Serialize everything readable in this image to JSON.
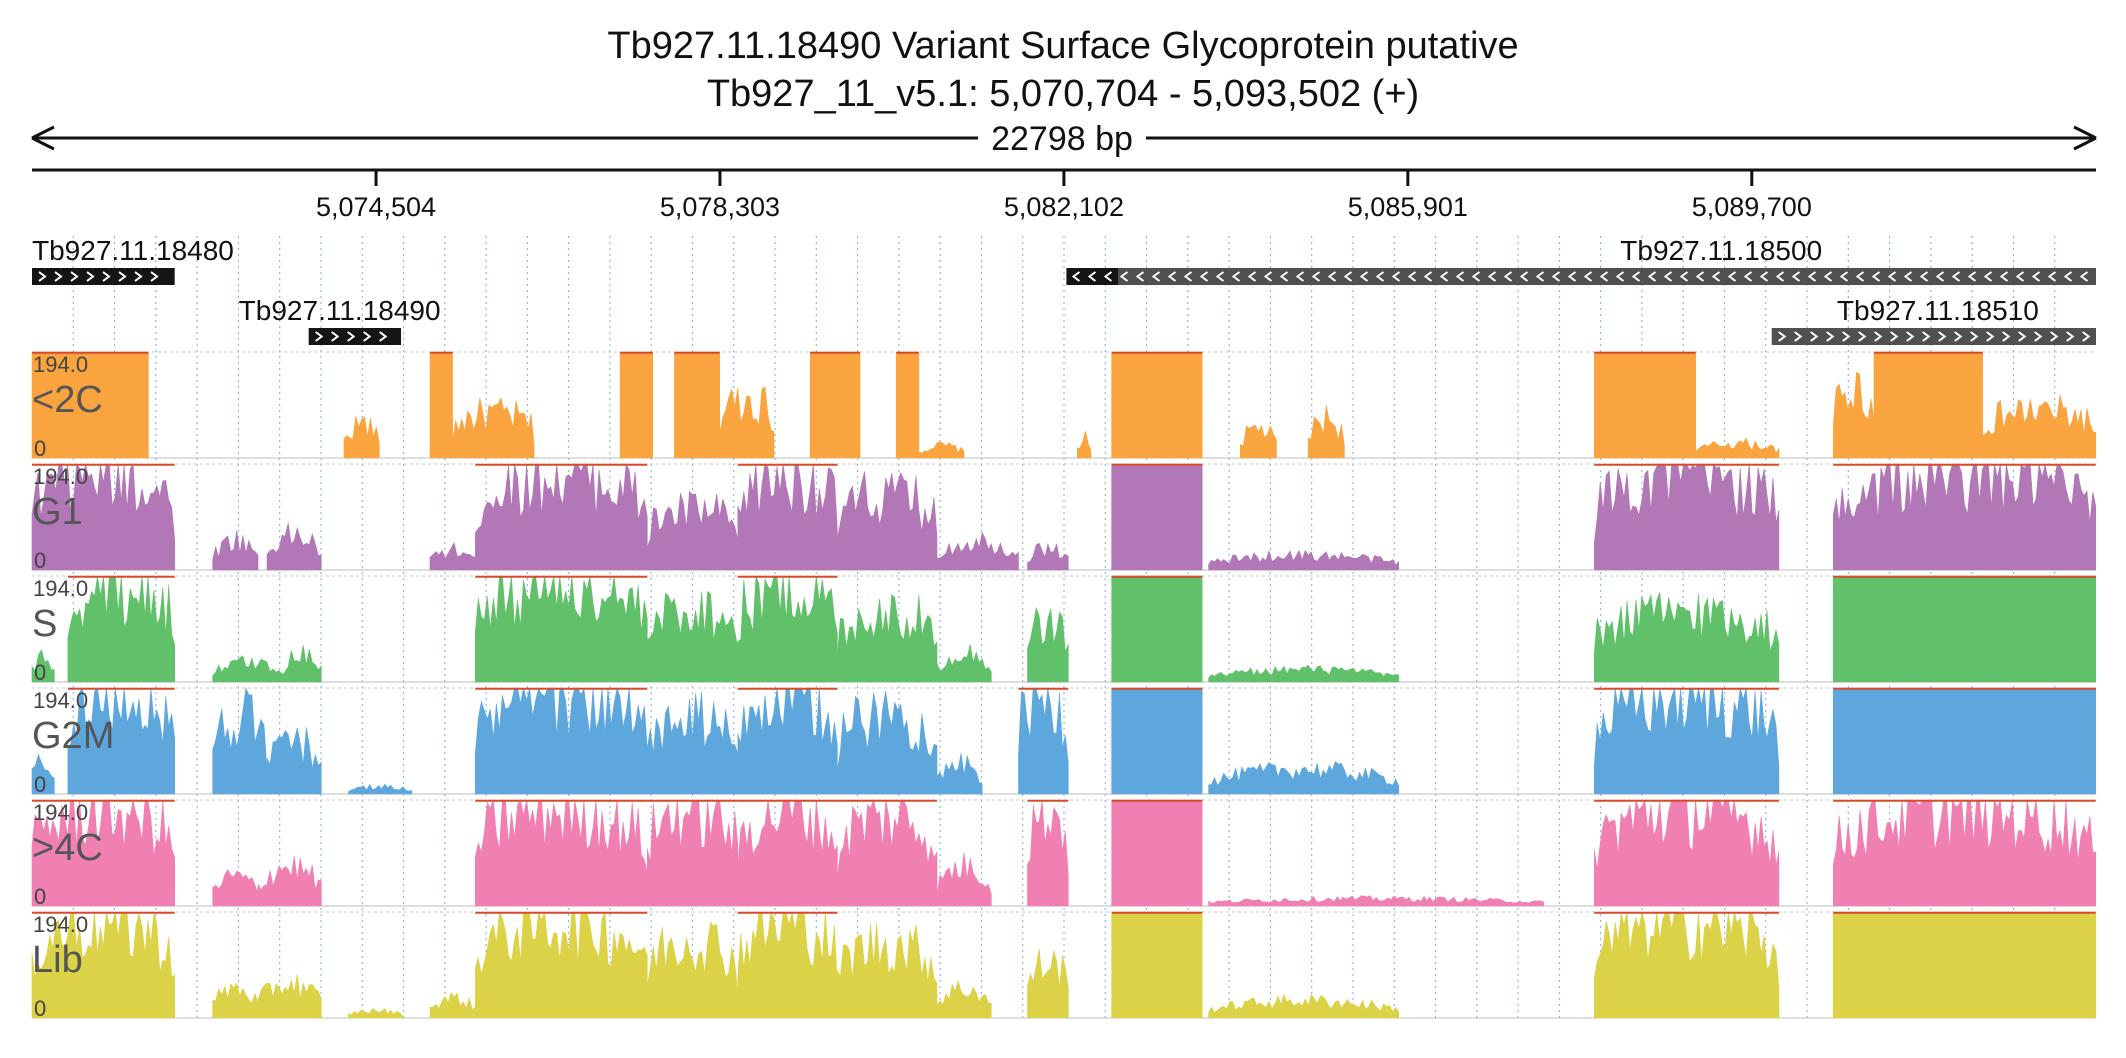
{
  "header": {
    "title": "Tb927.11.18490  Variant Surface Glycoprotein  putative",
    "subtitle": "Tb927_11_v5.1: 5,070,704 - 5,093,502 (+)",
    "span_label": "22798 bp"
  },
  "colors": {
    "<2C": "#f9a43e",
    "G1": "#b277b6",
    "S": "#61c06a",
    "G2M": "#5ea7dd",
    ">4C": "#f07fb2",
    "Lib": "#dcd247",
    "clip": "#d94a2a",
    "gene": "#151515",
    "gene_alt": "#505050"
  },
  "chart_data": {
    "type": "area",
    "title": "Tb927.11.18490  Variant Surface Glycoprotein  putative",
    "chromosome": "Tb927_11_v5.1",
    "region": {
      "start": 5070704,
      "end": 5093502,
      "strand": "+"
    },
    "x_ticks": [
      {
        "value": 5074504,
        "label": "5,074,504"
      },
      {
        "value": 5078303,
        "label": "5,078,303"
      },
      {
        "value": 5082102,
        "label": "5,082,102"
      },
      {
        "value": 5085901,
        "label": "5,085,901"
      },
      {
        "value": 5089700,
        "label": "5,089,700"
      }
    ],
    "genes": [
      {
        "id": "Tb927.11.18480",
        "start": 5070704,
        "end": 5072280,
        "strand": "+",
        "row": 0,
        "color": "gene"
      },
      {
        "id": "Tb927.11.18490",
        "start": 5073760,
        "end": 5074780,
        "strand": "+",
        "row": 1,
        "color": "gene"
      },
      {
        "id": "Tb927.11.18500",
        "start": 5082130,
        "end": 5093502,
        "strand": "-",
        "row": 0,
        "color": "gene_alt",
        "dark_end": 5082700
      },
      {
        "id": "Tb927.11.18510",
        "start": 5089920,
        "end": 5093502,
        "strand": "+",
        "row": 1,
        "color": "gene_alt"
      }
    ],
    "ylim": [
      0,
      194.0
    ],
    "y_top_label": "194.0",
    "y_bottom_label": "0",
    "series": [
      {
        "name": "<2C",
        "segments": [
          {
            "s": 5070704,
            "e": 5071990,
            "h": 194,
            "shape": "flat"
          },
          {
            "s": 5074150,
            "e": 5074540,
            "h": 70,
            "shape": "bump"
          },
          {
            "s": 5075100,
            "e": 5075350,
            "h": 194,
            "shape": "flat"
          },
          {
            "s": 5075350,
            "e": 5076250,
            "h": 90,
            "shape": "hump"
          },
          {
            "s": 5077200,
            "e": 5077560,
            "h": 194,
            "shape": "flat"
          },
          {
            "s": 5077800,
            "e": 5078300,
            "h": 194,
            "shape": "flat"
          },
          {
            "s": 5078300,
            "e": 5078900,
            "h": 120,
            "shape": "hump"
          },
          {
            "s": 5079300,
            "e": 5079850,
            "h": 194,
            "shape": "flat"
          },
          {
            "s": 5080250,
            "e": 5080500,
            "h": 194,
            "shape": "flat"
          },
          {
            "s": 5080500,
            "e": 5081000,
            "h": 25,
            "shape": "bump"
          },
          {
            "s": 5082250,
            "e": 5082400,
            "h": 40,
            "shape": "bump"
          },
          {
            "s": 5082630,
            "e": 5083630,
            "h": 194,
            "shape": "flat"
          },
          {
            "s": 5084050,
            "e": 5084450,
            "h": 60,
            "shape": "bump"
          },
          {
            "s": 5084800,
            "e": 5085200,
            "h": 80,
            "shape": "bump"
          },
          {
            "s": 5087960,
            "e": 5089080,
            "h": 194,
            "shape": "flat"
          },
          {
            "s": 5089080,
            "e": 5090000,
            "h": 30,
            "shape": "bump"
          },
          {
            "s": 5090600,
            "e": 5091050,
            "h": 140,
            "shape": "hump"
          },
          {
            "s": 5091050,
            "e": 5092250,
            "h": 194,
            "shape": "flat"
          },
          {
            "s": 5092250,
            "e": 5093500,
            "h": 95,
            "shape": "hump"
          }
        ]
      },
      {
        "name": "G1",
        "segments": [
          {
            "s": 5070704,
            "e": 5072280,
            "h": 194,
            "shape": "hump"
          },
          {
            "s": 5072700,
            "e": 5073200,
            "h": 60,
            "shape": "bump"
          },
          {
            "s": 5073300,
            "e": 5073900,
            "h": 70,
            "shape": "bump"
          },
          {
            "s": 5075100,
            "e": 5075600,
            "h": 40,
            "shape": "bump"
          },
          {
            "s": 5075600,
            "e": 5077500,
            "h": 194,
            "shape": "hump"
          },
          {
            "s": 5077500,
            "e": 5078500,
            "h": 120,
            "shape": "hump"
          },
          {
            "s": 5078500,
            "e": 5079600,
            "h": 194,
            "shape": "hump"
          },
          {
            "s": 5079600,
            "e": 5080700,
            "h": 150,
            "shape": "hump"
          },
          {
            "s": 5080700,
            "e": 5081600,
            "h": 60,
            "shape": "bump"
          },
          {
            "s": 5081700,
            "e": 5082150,
            "h": 45,
            "shape": "bump"
          },
          {
            "s": 5082630,
            "e": 5083630,
            "h": 194,
            "shape": "flat"
          },
          {
            "s": 5083700,
            "e": 5085800,
            "h": 30,
            "shape": "bump"
          },
          {
            "s": 5087960,
            "e": 5090000,
            "h": 194,
            "shape": "hump"
          },
          {
            "s": 5090600,
            "e": 5093500,
            "h": 194,
            "shape": "hump"
          }
        ]
      },
      {
        "name": "S",
        "segments": [
          {
            "s": 5070704,
            "e": 5070950,
            "h": 50,
            "shape": "bump"
          },
          {
            "s": 5071100,
            "e": 5072280,
            "h": 194,
            "shape": "hump"
          },
          {
            "s": 5072700,
            "e": 5073500,
            "h": 40,
            "shape": "bump"
          },
          {
            "s": 5073500,
            "e": 5073900,
            "h": 60,
            "shape": "bump"
          },
          {
            "s": 5075600,
            "e": 5077500,
            "h": 194,
            "shape": "hump"
          },
          {
            "s": 5077500,
            "e": 5078500,
            "h": 150,
            "shape": "hump"
          },
          {
            "s": 5078500,
            "e": 5079600,
            "h": 194,
            "shape": "hump"
          },
          {
            "s": 5079600,
            "e": 5080700,
            "h": 140,
            "shape": "hump"
          },
          {
            "s": 5080700,
            "e": 5081300,
            "h": 60,
            "shape": "bump"
          },
          {
            "s": 5081700,
            "e": 5082150,
            "h": 120,
            "shape": "hump"
          },
          {
            "s": 5082630,
            "e": 5083630,
            "h": 194,
            "shape": "flat"
          },
          {
            "s": 5083700,
            "e": 5085800,
            "h": 25,
            "shape": "bump"
          },
          {
            "s": 5087960,
            "e": 5090000,
            "h": 140,
            "shape": "hump"
          },
          {
            "s": 5090600,
            "e": 5093500,
            "h": 194,
            "shape": "flat"
          }
        ]
      },
      {
        "name": "G2M",
        "segments": [
          {
            "s": 5070704,
            "e": 5070950,
            "h": 80,
            "shape": "bump"
          },
          {
            "s": 5071100,
            "e": 5072280,
            "h": 194,
            "shape": "hump"
          },
          {
            "s": 5072700,
            "e": 5073300,
            "h": 160,
            "shape": "hump"
          },
          {
            "s": 5073300,
            "e": 5073900,
            "h": 110,
            "shape": "bump"
          },
          {
            "s": 5074200,
            "e": 5074900,
            "h": 15,
            "shape": "bump"
          },
          {
            "s": 5075600,
            "e": 5077500,
            "h": 194,
            "shape": "hump"
          },
          {
            "s": 5077500,
            "e": 5078500,
            "h": 150,
            "shape": "hump"
          },
          {
            "s": 5078500,
            "e": 5079600,
            "h": 194,
            "shape": "hump"
          },
          {
            "s": 5079600,
            "e": 5080700,
            "h": 160,
            "shape": "hump"
          },
          {
            "s": 5080700,
            "e": 5081200,
            "h": 60,
            "shape": "bump"
          },
          {
            "s": 5081600,
            "e": 5082150,
            "h": 194,
            "shape": "hump"
          },
          {
            "s": 5082630,
            "e": 5083630,
            "h": 194,
            "shape": "flat"
          },
          {
            "s": 5083700,
            "e": 5085800,
            "h": 50,
            "shape": "bump"
          },
          {
            "s": 5087960,
            "e": 5090000,
            "h": 194,
            "shape": "hump"
          },
          {
            "s": 5090600,
            "e": 5093500,
            "h": 194,
            "shape": "flat"
          }
        ]
      },
      {
        "name": ">4C",
        "segments": [
          {
            "s": 5070704,
            "e": 5072280,
            "h": 194,
            "shape": "hump"
          },
          {
            "s": 5072700,
            "e": 5073200,
            "h": 60,
            "shape": "bump"
          },
          {
            "s": 5073200,
            "e": 5073900,
            "h": 80,
            "shape": "bump"
          },
          {
            "s": 5075600,
            "e": 5077500,
            "h": 194,
            "shape": "hump"
          },
          {
            "s": 5077500,
            "e": 5078500,
            "h": 194,
            "shape": "hump"
          },
          {
            "s": 5078500,
            "e": 5079600,
            "h": 194,
            "shape": "hump"
          },
          {
            "s": 5079600,
            "e": 5080700,
            "h": 180,
            "shape": "hump"
          },
          {
            "s": 5080700,
            "e": 5081300,
            "h": 80,
            "shape": "bump"
          },
          {
            "s": 5081700,
            "e": 5082150,
            "h": 194,
            "shape": "hump"
          },
          {
            "s": 5082630,
            "e": 5083630,
            "h": 194,
            "shape": "flat"
          },
          {
            "s": 5083700,
            "e": 5087400,
            "h": 15,
            "shape": "bump"
          },
          {
            "s": 5087960,
            "e": 5090000,
            "h": 194,
            "shape": "hump"
          },
          {
            "s": 5090600,
            "e": 5093500,
            "h": 194,
            "shape": "hump"
          }
        ]
      },
      {
        "name": "Lib",
        "segments": [
          {
            "s": 5070704,
            "e": 5072280,
            "h": 194,
            "shape": "hump"
          },
          {
            "s": 5072700,
            "e": 5073200,
            "h": 60,
            "shape": "bump"
          },
          {
            "s": 5073200,
            "e": 5073900,
            "h": 70,
            "shape": "bump"
          },
          {
            "s": 5074200,
            "e": 5074800,
            "h": 15,
            "shape": "bump"
          },
          {
            "s": 5075100,
            "e": 5075600,
            "h": 40,
            "shape": "bump"
          },
          {
            "s": 5075600,
            "e": 5077500,
            "h": 194,
            "shape": "hump"
          },
          {
            "s": 5077500,
            "e": 5078500,
            "h": 160,
            "shape": "hump"
          },
          {
            "s": 5078500,
            "e": 5079600,
            "h": 194,
            "shape": "hump"
          },
          {
            "s": 5079600,
            "e": 5080700,
            "h": 150,
            "shape": "hump"
          },
          {
            "s": 5080700,
            "e": 5081300,
            "h": 60,
            "shape": "bump"
          },
          {
            "s": 5081700,
            "e": 5082150,
            "h": 110,
            "shape": "hump"
          },
          {
            "s": 5082630,
            "e": 5083630,
            "h": 194,
            "shape": "flat"
          },
          {
            "s": 5083700,
            "e": 5085800,
            "h": 35,
            "shape": "bump"
          },
          {
            "s": 5087960,
            "e": 5090000,
            "h": 194,
            "shape": "hump"
          },
          {
            "s": 5090600,
            "e": 5093500,
            "h": 194,
            "shape": "flat"
          }
        ]
      }
    ]
  }
}
